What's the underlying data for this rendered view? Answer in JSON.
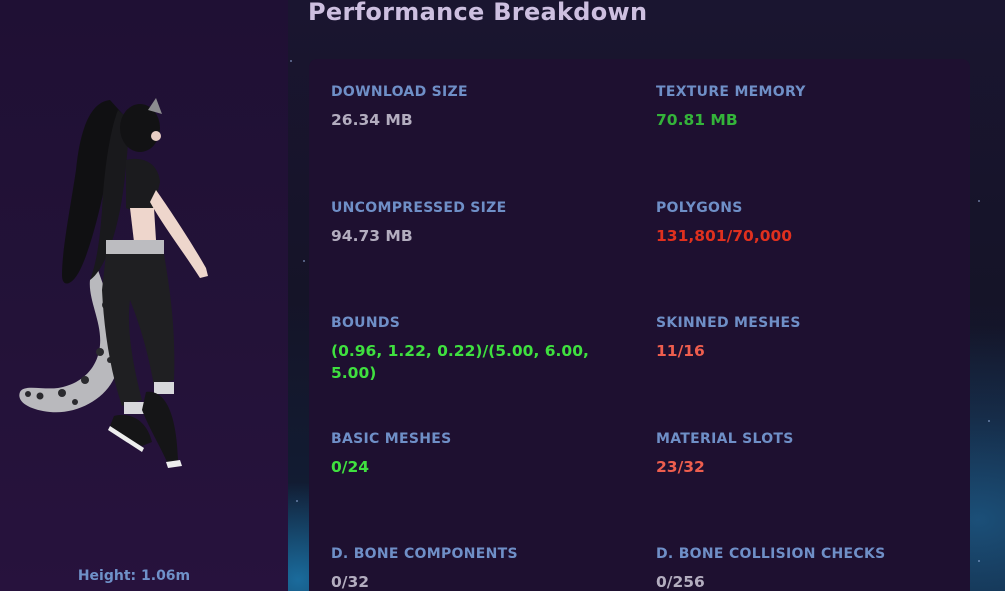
{
  "page_title": "Performance Breakdown",
  "avatar": {
    "height_label": "Height: 1.06m"
  },
  "colors": {
    "label": "#6f8fc7",
    "neutral": "#b3adbf",
    "good": "#34b43a",
    "excellent": "#3fe03f",
    "very_poor": "#e0301e",
    "poor": "#ee5e4e"
  },
  "stats": {
    "download_size": {
      "label": "DOWNLOAD SIZE",
      "value": "26.34 MB"
    },
    "texture_memory": {
      "label": "TEXTURE MEMORY",
      "value": "70.81 MB"
    },
    "uncompressed_size": {
      "label": "UNCOMPRESSED SIZE",
      "value": "94.73 MB"
    },
    "polygons": {
      "label": "POLYGONS",
      "value": "131,801/70,000"
    },
    "bounds": {
      "label": "BOUNDS",
      "value": "(0.96, 1.22, 0.22)/(5.00, 6.00, 5.00)"
    },
    "skinned_meshes": {
      "label": "SKINNED MESHES",
      "value": "11/16"
    },
    "basic_meshes": {
      "label": "BASIC MESHES",
      "value": "0/24"
    },
    "material_slots": {
      "label": "MATERIAL SLOTS",
      "value": "23/32"
    },
    "d_bone_components": {
      "label": "D. BONE COMPONENTS",
      "value": "0/32"
    },
    "d_bone_collision_checks": {
      "label": "D. BONE COLLISION CHECKS",
      "value": "0/256"
    }
  }
}
